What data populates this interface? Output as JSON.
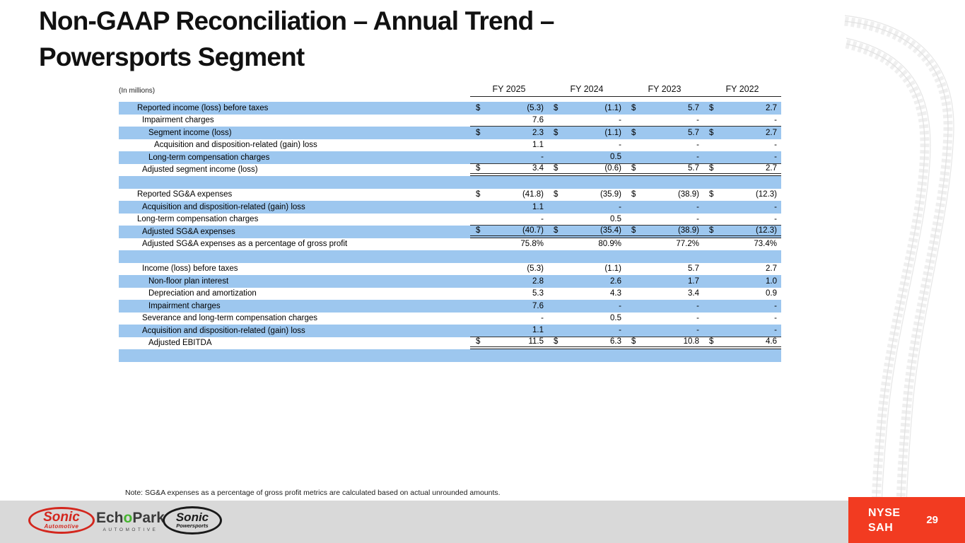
{
  "slide": {
    "title_line1": "Non-GAAP Reconciliation – Annual Trend –",
    "title_line2": "Powersports Segment",
    "note": "Note: SG&A expenses as a percentage of gross profit metrics are calculated based on actual unrounded amounts.",
    "page_number": "29",
    "ticker": {
      "line1": "NYSE",
      "line2": "SAH"
    }
  },
  "table": {
    "units_label": "(In millions)",
    "currency_symbol": "$",
    "columns": [
      "FY 2025",
      "FY 2024",
      "FY 2023",
      "FY 2022"
    ],
    "rows": [
      {
        "label": "Reported income (loss) before taxes",
        "indent": 1,
        "dollar": true,
        "shaded": true,
        "rule": null,
        "values": [
          "(5.3)",
          "(1.1)",
          "5.7",
          "2.7"
        ]
      },
      {
        "label": "Impairment charges",
        "indent": 2,
        "dollar": false,
        "shaded": false,
        "rule": "single",
        "values": [
          "7.6",
          "-",
          "-",
          "-"
        ]
      },
      {
        "label": "Segment income (loss)",
        "indent": 3,
        "dollar": true,
        "shaded": true,
        "rule": null,
        "values": [
          "2.3",
          "(1.1)",
          "5.7",
          "2.7"
        ]
      },
      {
        "label": "Acquisition and disposition-related (gain) loss",
        "indent": 4,
        "dollar": false,
        "shaded": false,
        "rule": null,
        "values": [
          "1.1",
          "-",
          "-",
          "-"
        ]
      },
      {
        "label": "Long-term compensation charges",
        "indent": 3,
        "dollar": false,
        "shaded": true,
        "rule": "single",
        "values": [
          "-",
          "0.5",
          "-",
          "-"
        ]
      },
      {
        "label": "Adjusted segment income (loss)",
        "indent": 2,
        "dollar": true,
        "shaded": false,
        "rule": "double",
        "values": [
          "3.4",
          "(0.6)",
          "5.7",
          "2.7"
        ]
      },
      {
        "spacer": true,
        "shaded": true
      },
      {
        "label": "Reported SG&A expenses",
        "indent": 1,
        "dollar": true,
        "shaded": false,
        "rule": null,
        "values": [
          "(41.8)",
          "(35.9)",
          "(38.9)",
          "(12.3)"
        ]
      },
      {
        "label": "Acquisition and disposition-related (gain) loss",
        "indent": 2,
        "dollar": false,
        "shaded": true,
        "rule": null,
        "values": [
          "1.1",
          "-",
          "-",
          "-"
        ]
      },
      {
        "label": "Long-term compensation charges",
        "indent": 1,
        "dollar": false,
        "shaded": false,
        "rule": "single",
        "values": [
          "-",
          "0.5",
          "-",
          "-"
        ]
      },
      {
        "label": "Adjusted SG&A expenses",
        "indent": 2,
        "dollar": true,
        "shaded": true,
        "rule": "double",
        "values": [
          "(40.7)",
          "(35.4)",
          "(38.9)",
          "(12.3)"
        ]
      },
      {
        "label": "Adjusted SG&A expenses as a percentage of gross profit",
        "indent": 2,
        "dollar": false,
        "shaded": false,
        "rule": null,
        "values": [
          "75.8%",
          "80.9%",
          "77.2%",
          "73.4%"
        ]
      },
      {
        "spacer": true,
        "shaded": true
      },
      {
        "label": "Income (loss) before taxes",
        "indent": 2,
        "dollar": false,
        "shaded": false,
        "rule": null,
        "values": [
          "(5.3)",
          "(1.1)",
          "5.7",
          "2.7"
        ]
      },
      {
        "label": "Non-floor plan interest",
        "indent": 3,
        "dollar": false,
        "shaded": true,
        "rule": null,
        "values": [
          "2.8",
          "2.6",
          "1.7",
          "1.0"
        ]
      },
      {
        "label": "Depreciation and amortization",
        "indent": 3,
        "dollar": false,
        "shaded": false,
        "rule": null,
        "values": [
          "5.3",
          "4.3",
          "3.4",
          "0.9"
        ]
      },
      {
        "label": "Impairment charges",
        "indent": 3,
        "dollar": false,
        "shaded": true,
        "rule": null,
        "values": [
          "7.6",
          "-",
          "-",
          "-"
        ]
      },
      {
        "label": "Severance and long-term compensation charges",
        "indent": 2,
        "dollar": false,
        "shaded": false,
        "rule": null,
        "values": [
          "-",
          "0.5",
          "-",
          "-"
        ]
      },
      {
        "label": "Acquisition and disposition-related (gain) loss",
        "indent": 2,
        "dollar": false,
        "shaded": true,
        "rule": "single",
        "values": [
          "1.1",
          "-",
          "-",
          "-"
        ]
      },
      {
        "label": "Adjusted EBITDA",
        "indent": 3,
        "dollar": true,
        "shaded": false,
        "rule": "double",
        "values": [
          "11.5",
          "6.3",
          "10.8",
          "4.6"
        ]
      },
      {
        "spacer": true,
        "shaded": true
      }
    ]
  },
  "footer": {
    "logos": {
      "sonic_automotive": {
        "name": "Sonic",
        "sub": "Automotive"
      },
      "echopark": {
        "part1": "Ech",
        "part2": "o",
        "part3": "Park",
        "sub": "AUTOMOTIVE"
      },
      "sonic_powersports": {
        "name": "Sonic",
        "sub": "Powersports"
      }
    }
  },
  "colors": {
    "row_highlight": "#9DC7EF",
    "footer_gray": "#D9D9D9",
    "ticker_red": "#F23B21",
    "sonic_red": "#D3271E",
    "echopark_green": "#46B530",
    "rule_dark": "#222222"
  }
}
